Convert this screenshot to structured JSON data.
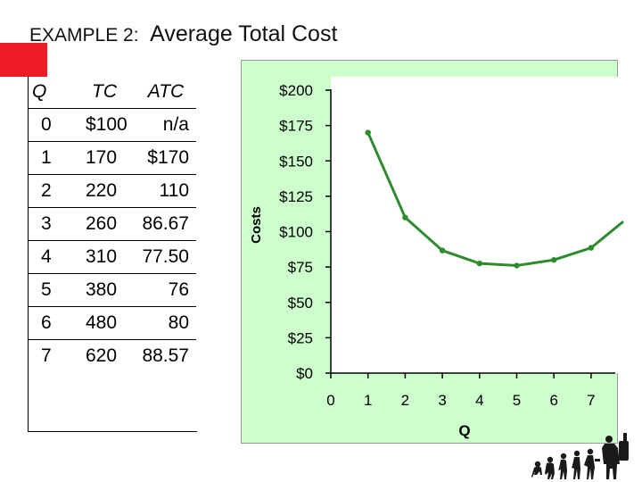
{
  "title": {
    "lead": "EXAMPLE 2",
    "sep": ":",
    "main": "Average Total Cost"
  },
  "table": {
    "headers": [
      "Q",
      "TC",
      "ATC"
    ],
    "rows": [
      [
        "0",
        "$100",
        "n/a"
      ],
      [
        "1",
        "170",
        "$170"
      ],
      [
        "2",
        "220",
        "110"
      ],
      [
        "3",
        "260",
        "86.67"
      ],
      [
        "4",
        "310",
        "77.50"
      ],
      [
        "5",
        "380",
        "76"
      ],
      [
        "6",
        "480",
        "80"
      ],
      [
        "7",
        "620",
        "88.57"
      ]
    ]
  },
  "chart_data": {
    "type": "line",
    "xlabel": "Q",
    "ylabel": "Costs",
    "x": [
      1,
      2,
      3,
      4,
      5,
      6,
      7
    ],
    "series": [
      {
        "values": [
          170,
          110,
          86.67,
          77.5,
          76,
          80,
          88.57
        ]
      }
    ],
    "xticks": [
      "0",
      "1",
      "2",
      "3",
      "4",
      "5",
      "6",
      "7"
    ],
    "yticks": [
      "$0",
      "$25",
      "$50",
      "$75",
      "$100",
      "$125",
      "$150",
      "$175",
      "$200"
    ],
    "xlim": [
      0,
      7.5
    ],
    "ylim": [
      0,
      200
    ],
    "grid": false,
    "colors": {
      "line": "#2e8b2e",
      "plot_bg": "#ffffff",
      "panel_bg": "#ccffcc"
    }
  }
}
